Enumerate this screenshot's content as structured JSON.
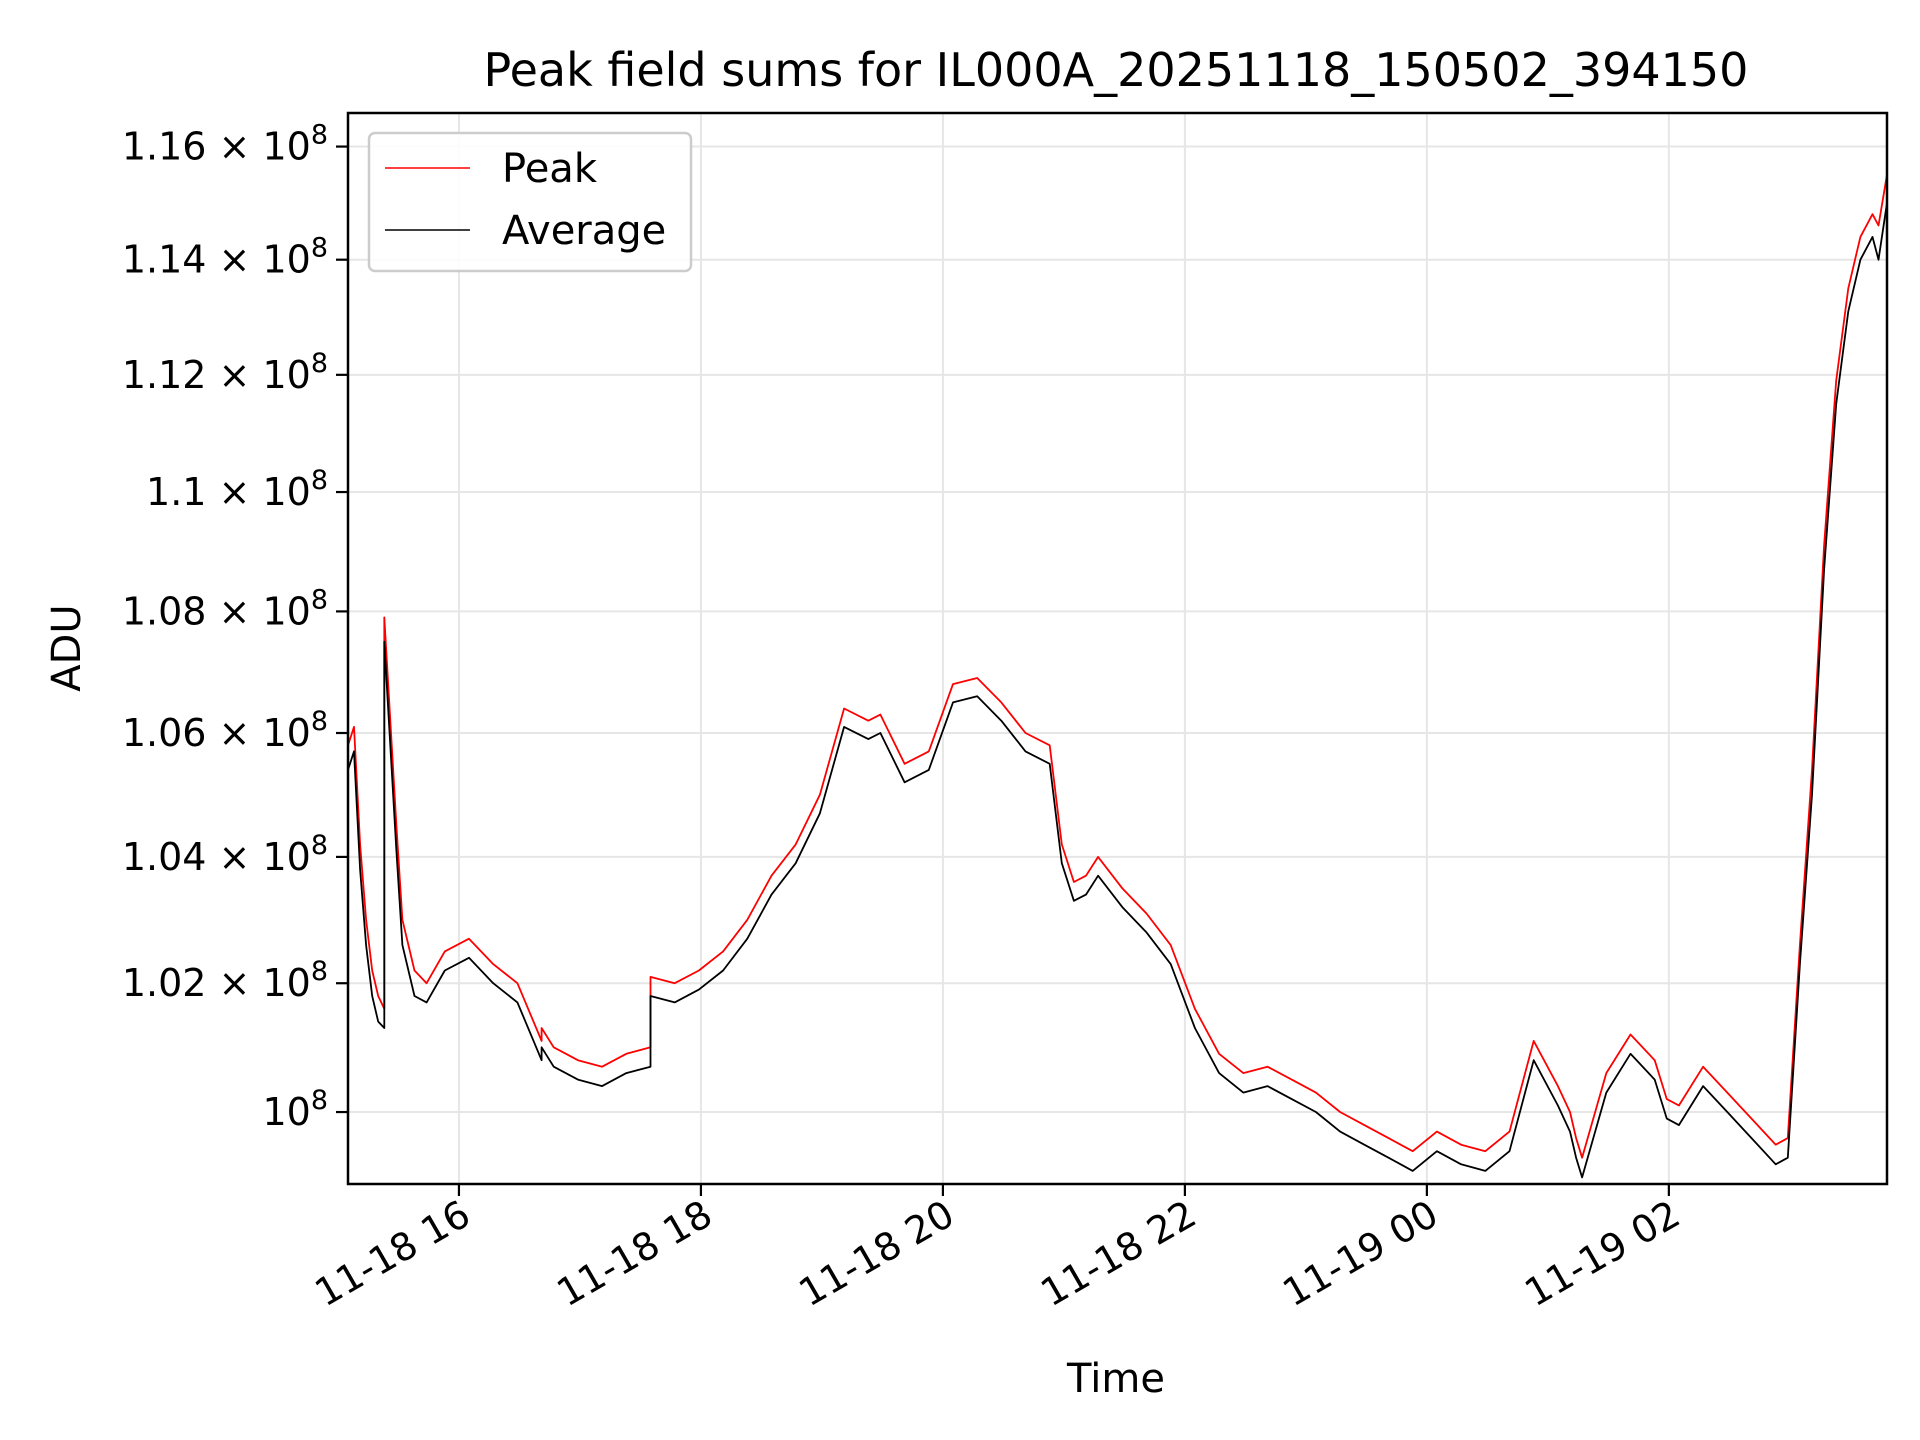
{
  "chart_data": {
    "type": "line",
    "title": "Peak field sums for IL000A_20251118_150502_394150",
    "xlabel": "Time",
    "ylabel": "ADU",
    "x_unit": "hours since 11-18 15:05",
    "xlim": [
      0,
      12.72
    ],
    "ylim": [
      98900000,
      116600000
    ],
    "y_scale": "log",
    "grid": true,
    "legend_position": "upper-left",
    "x_ticks": [
      {
        "label": "11-18 16",
        "value": 0.917
      },
      {
        "label": "11-18 18",
        "value": 2.917
      },
      {
        "label": "11-18 20",
        "value": 4.917
      },
      {
        "label": "11-18 22",
        "value": 6.917
      },
      {
        "label": "11-19 00",
        "value": 8.917
      },
      {
        "label": "11-19 02",
        "value": 10.917
      }
    ],
    "y_ticks": [
      {
        "mantissa": "",
        "label": "10",
        "exp": "8",
        "value": 100000000
      },
      {
        "mantissa": "1.02",
        "label": "× 10",
        "exp": "8",
        "value": 102000000
      },
      {
        "mantissa": "1.04",
        "label": "× 10",
        "exp": "8",
        "value": 104000000
      },
      {
        "mantissa": "1.06",
        "label": "× 10",
        "exp": "8",
        "value": 106000000
      },
      {
        "mantissa": "1.08",
        "label": "× 10",
        "exp": "8",
        "value": 108000000
      },
      {
        "mantissa": "1.1",
        "label": "× 10",
        "exp": "8",
        "value": 110000000
      },
      {
        "mantissa": "1.12",
        "label": "× 10",
        "exp": "8",
        "value": 112000000
      },
      {
        "mantissa": "1.14",
        "label": "× 10",
        "exp": "8",
        "value": 114000000
      },
      {
        "mantissa": "1.16",
        "label": "× 10",
        "exp": "8",
        "value": 116000000
      }
    ],
    "series": [
      {
        "name": "Peak",
        "color": "#ff0000",
        "x": [
          0,
          0.05,
          0.1,
          0.15,
          0.2,
          0.25,
          0.3,
          0.3,
          0.35,
          0.4,
          0.45,
          0.55,
          0.65,
          0.8,
          1,
          1.2,
          1.4,
          1.6,
          1.6,
          1.7,
          1.9,
          2.1,
          2.3,
          2.5,
          2.5,
          2.7,
          2.9,
          3.1,
          3.3,
          3.5,
          3.7,
          3.9,
          4.1,
          4.3,
          4.4,
          4.6,
          4.8,
          5,
          5.2,
          5.4,
          5.6,
          5.8,
          5.9,
          6,
          6.1,
          6.2,
          6.4,
          6.6,
          6.8,
          7,
          7.2,
          7.4,
          7.6,
          7.8,
          8,
          8.2,
          8.4,
          8.6,
          8.8,
          9,
          9.2,
          9.4,
          9.6,
          9.8,
          10,
          10.1,
          10.15,
          10.2,
          10.4,
          10.6,
          10.8,
          10.9,
          11,
          11.2,
          11.4,
          11.6,
          11.8,
          11.9,
          12,
          12.1,
          12.2,
          12.3,
          12.4,
          12.5,
          12.6,
          12.65,
          12.72
        ],
        "values": [
          105800000,
          106100000,
          104200000,
          103000000,
          102200000,
          101800000,
          101600000,
          107900000,
          106200000,
          104500000,
          103000000,
          102200000,
          102000000,
          102500000,
          102700000,
          102300000,
          102000000,
          101100000,
          101300000,
          101000000,
          100800000,
          100700000,
          100900000,
          101000000,
          102100000,
          102000000,
          102200000,
          102500000,
          103000000,
          103700000,
          104200000,
          105000000,
          106400000,
          106200000,
          106300000,
          105500000,
          105700000,
          106800000,
          106900000,
          106500000,
          106000000,
          105800000,
          104200000,
          103600000,
          103700000,
          104000000,
          103500000,
          103100000,
          102600000,
          101600000,
          100900000,
          100600000,
          100700000,
          100500000,
          100300000,
          100000000,
          99800000,
          99600000,
          99400000,
          99700000,
          99500000,
          99400000,
          99700000,
          101100000,
          100400000,
          100000000,
          99600000,
          99300000,
          100600000,
          101200000,
          100800000,
          100200000,
          100100000,
          100700000,
          100300000,
          99900000,
          99500000,
          99600000,
          102600000,
          105400000,
          109100000,
          111900000,
          113500000,
          114400000,
          114800000,
          114600000,
          115500000
        ]
      },
      {
        "name": "Average",
        "color": "#000000",
        "x": [
          0,
          0.05,
          0.1,
          0.15,
          0.2,
          0.25,
          0.3,
          0.3,
          0.35,
          0.4,
          0.45,
          0.55,
          0.65,
          0.8,
          1,
          1.2,
          1.4,
          1.6,
          1.6,
          1.7,
          1.9,
          2.1,
          2.3,
          2.5,
          2.5,
          2.7,
          2.9,
          3.1,
          3.3,
          3.5,
          3.7,
          3.9,
          4.1,
          4.3,
          4.4,
          4.6,
          4.8,
          5,
          5.2,
          5.4,
          5.6,
          5.8,
          5.9,
          6,
          6.1,
          6.2,
          6.4,
          6.6,
          6.8,
          7,
          7.2,
          7.4,
          7.6,
          7.8,
          8,
          8.2,
          8.4,
          8.6,
          8.8,
          9,
          9.2,
          9.4,
          9.6,
          9.8,
          10,
          10.1,
          10.15,
          10.2,
          10.4,
          10.6,
          10.8,
          10.9,
          11,
          11.2,
          11.4,
          11.6,
          11.8,
          11.9,
          12,
          12.1,
          12.2,
          12.3,
          12.4,
          12.5,
          12.6,
          12.65,
          12.72
        ],
        "values": [
          105400000,
          105700000,
          103800000,
          102600000,
          101800000,
          101400000,
          101300000,
          107500000,
          105800000,
          104100000,
          102600000,
          101800000,
          101700000,
          102200000,
          102400000,
          102000000,
          101700000,
          100800000,
          101000000,
          100700000,
          100500000,
          100400000,
          100600000,
          100700000,
          101800000,
          101700000,
          101900000,
          102200000,
          102700000,
          103400000,
          103900000,
          104700000,
          106100000,
          105900000,
          106000000,
          105200000,
          105400000,
          106500000,
          106600000,
          106200000,
          105700000,
          105500000,
          103900000,
          103300000,
          103400000,
          103700000,
          103200000,
          102800000,
          102300000,
          101300000,
          100600000,
          100300000,
          100400000,
          100200000,
          100000000,
          99700000,
          99500000,
          99300000,
          99100000,
          99400000,
          99200000,
          99100000,
          99400000,
          100800000,
          100100000,
          99700000,
          99300000,
          99000000,
          100300000,
          100900000,
          100500000,
          99900000,
          99800000,
          100400000,
          100000000,
          99600000,
          99200000,
          99300000,
          102300000,
          105000000,
          108700000,
          111500000,
          113100000,
          114000000,
          114400000,
          114000000,
          115000000
        ]
      }
    ]
  }
}
